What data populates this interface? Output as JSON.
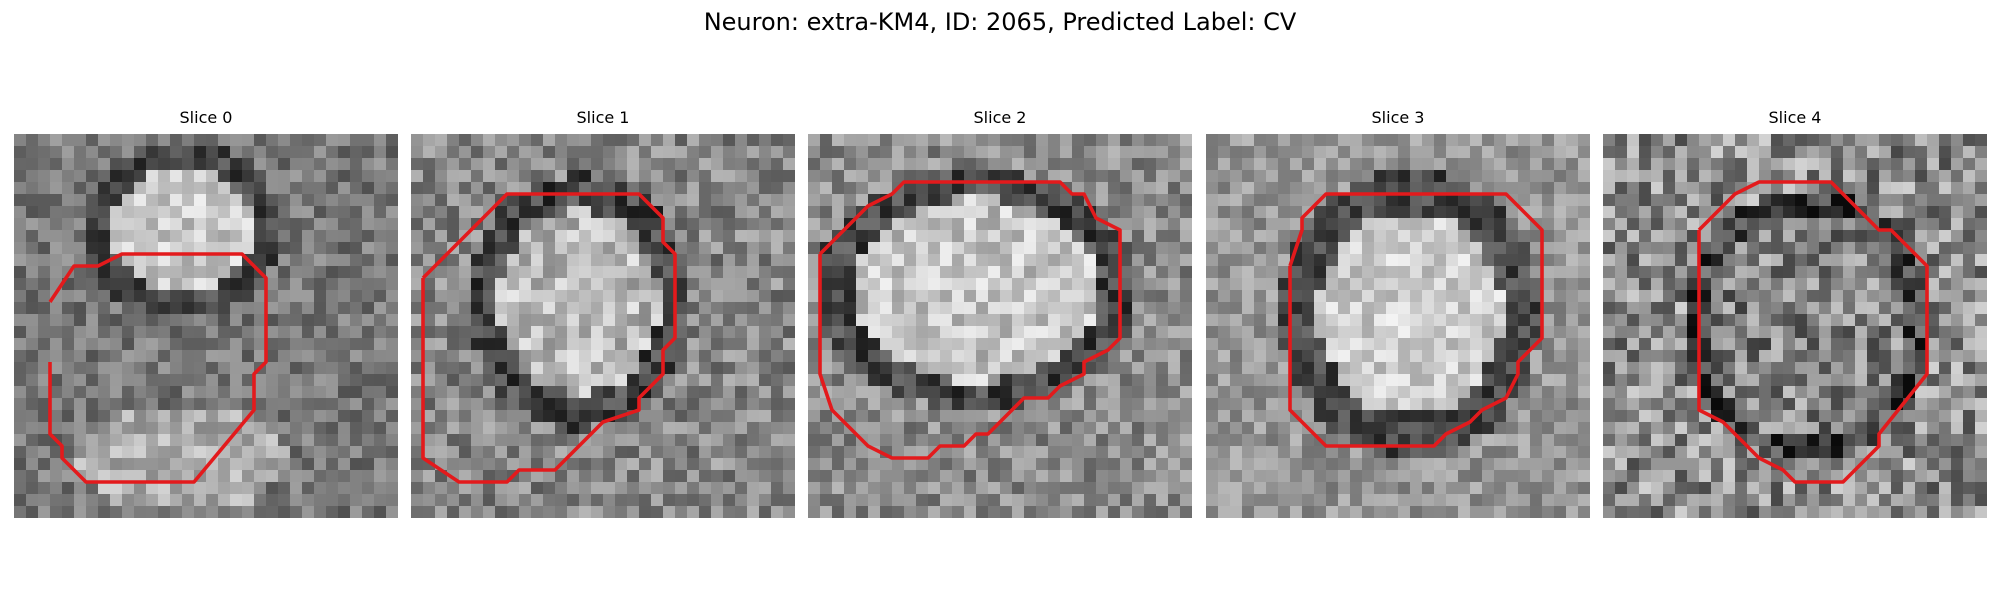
{
  "figure": {
    "title": "Neuron: extra-KM4, ID: 2065, Predicted Label: CV",
    "contour_color": "#e31a1c",
    "colormap": "grayscale"
  },
  "panels": [
    {
      "title": "Slice 0"
    },
    {
      "title": "Slice 1"
    },
    {
      "title": "Slice 2"
    },
    {
      "title": "Slice 3"
    },
    {
      "title": "Slice 4"
    }
  ]
}
